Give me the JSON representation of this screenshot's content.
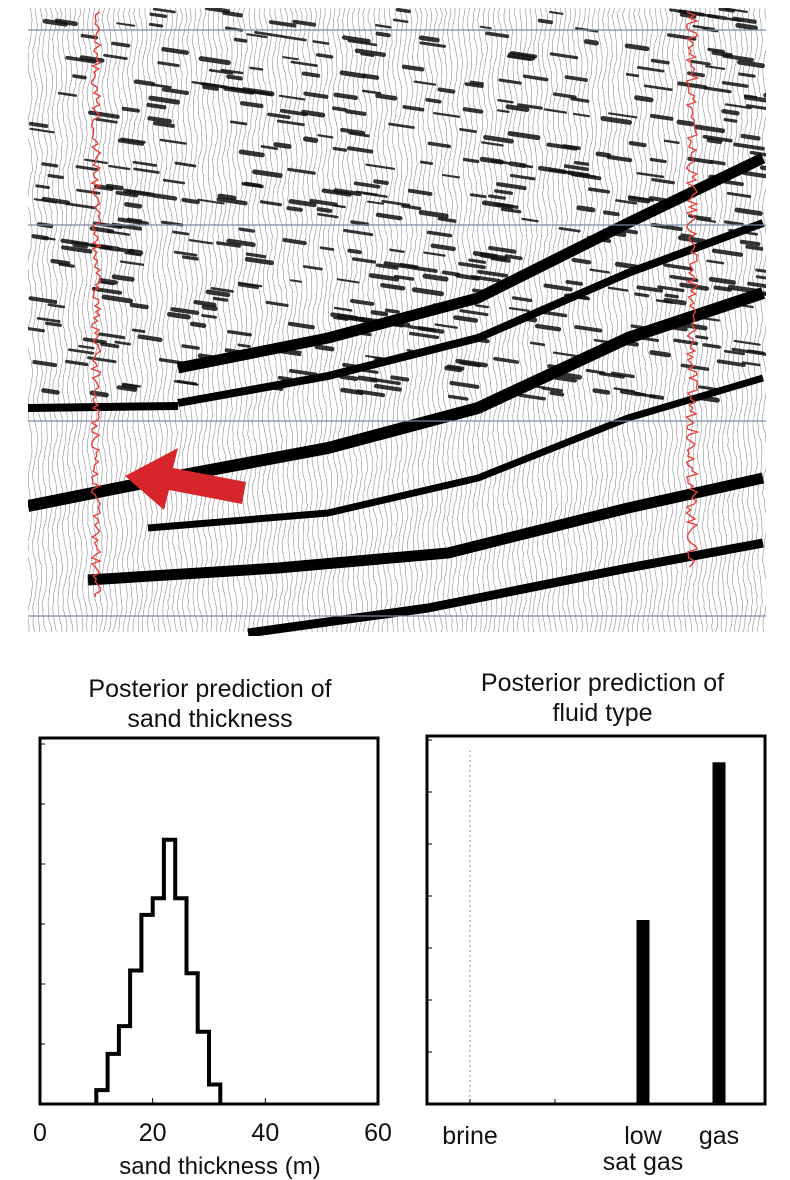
{
  "seismic": {
    "trace_color": "#e8403a",
    "arrow_color": "#d6262b"
  },
  "chart_data": [
    {
      "type": "line",
      "title": "Posterior prediction of sand thickness",
      "title_lines": [
        "Posterior prediction of",
        "sand thickness"
      ],
      "xlabel": "sand thickness (m)",
      "ylabel": "",
      "xlim": [
        0,
        60
      ],
      "xticks": [
        "0",
        "20",
        "40",
        "60"
      ],
      "step_histogram": {
        "x_edges": [
          10,
          12,
          14,
          16,
          18,
          20,
          22,
          24,
          26,
          28,
          30,
          32
        ],
        "density": [
          0.05,
          0.18,
          0.28,
          0.48,
          0.68,
          0.74,
          0.95,
          0.74,
          0.47,
          0.26,
          0.07
        ]
      },
      "grid": false
    },
    {
      "type": "bar",
      "title": "Posterior prediction of fluid type",
      "title_lines": [
        "Posterior prediction of",
        "fluid type"
      ],
      "categories": [
        "brine",
        "low sat gas",
        "gas"
      ],
      "category_lines": [
        [
          "brine"
        ],
        [
          "low",
          "sat gas"
        ],
        [
          "gas"
        ]
      ],
      "values": [
        0.0,
        0.35,
        0.65
      ],
      "ylim": [
        0,
        0.7
      ],
      "bar_color": "#000000",
      "grid": false
    }
  ]
}
